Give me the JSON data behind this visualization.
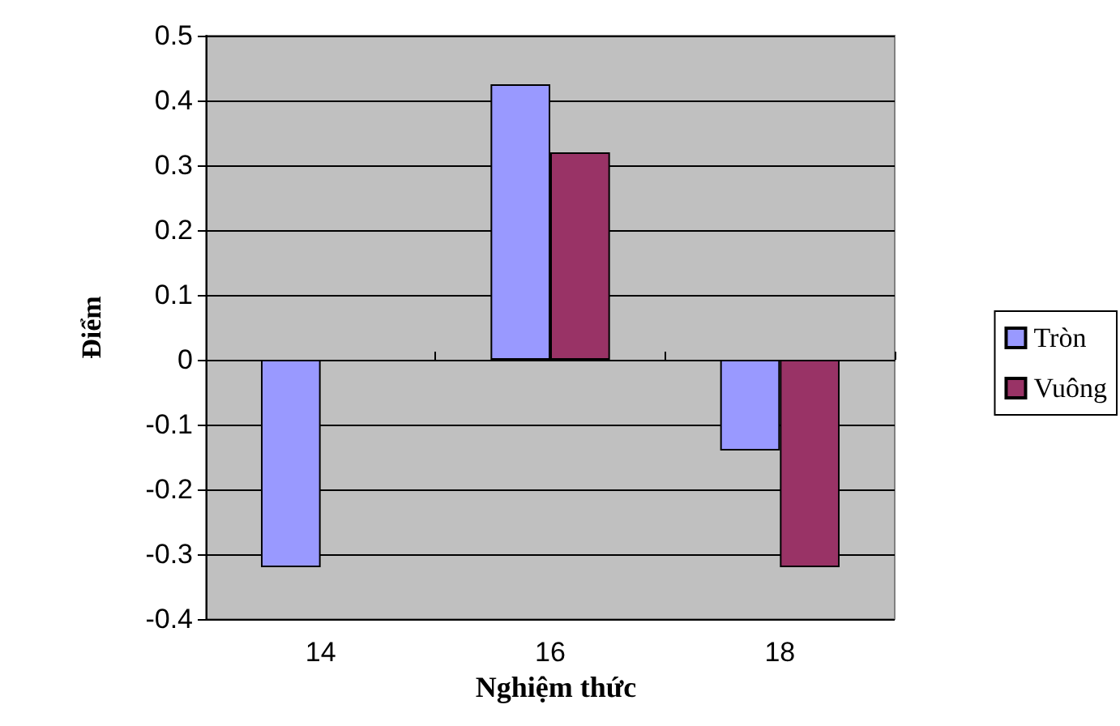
{
  "chart_data": {
    "type": "bar",
    "categories": [
      "14",
      "16",
      "18"
    ],
    "series": [
      {
        "name": "Tròn",
        "color": "#9999ff",
        "values": [
          -0.32,
          0.425,
          -0.14
        ]
      },
      {
        "name": "Vuông",
        "color": "#993366",
        "values": [
          null,
          0.32,
          -0.32
        ]
      }
    ],
    "xlabel": "Nghiệm thức",
    "ylabel": "Điểm",
    "ylim": [
      -0.4,
      0.5
    ],
    "yticks": [
      -0.4,
      -0.3,
      -0.2,
      -0.1,
      0,
      0.1,
      0.2,
      0.3,
      0.4,
      0.5
    ],
    "grid": "y",
    "legend": "right"
  }
}
